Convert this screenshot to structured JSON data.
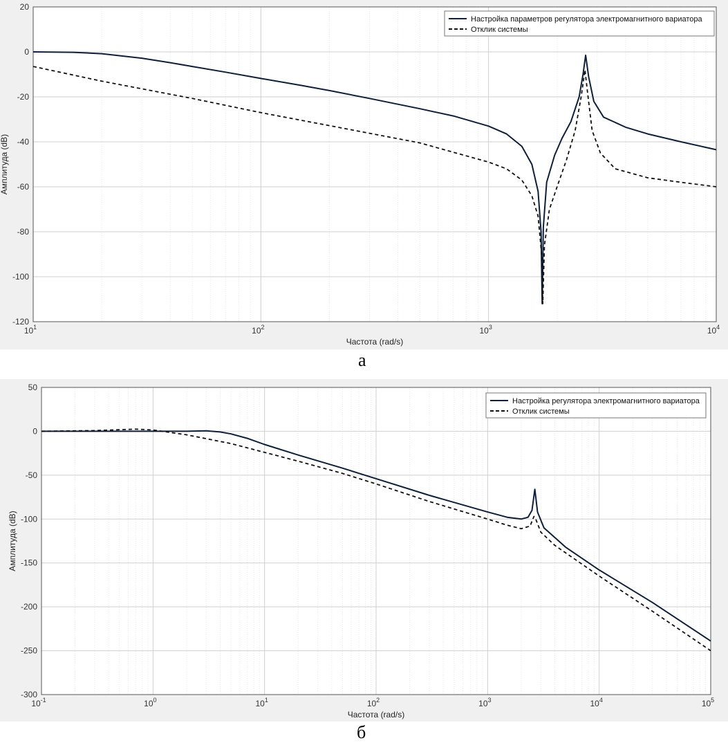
{
  "colors": {
    "solid": "#0d1f3a",
    "dashed": "#111111",
    "figure_bg": "#f0f0f0",
    "axes_bg": "#ffffff",
    "grid_major": "#cfcfcf",
    "grid_minor": "#e6e6e6"
  },
  "chart_data": [
    {
      "type": "line",
      "caption": "а",
      "xlabel": "Частота  (rad/s)",
      "ylabel": "Амплитуда (dB)",
      "xscale": "log",
      "xlim": [
        10,
        10000
      ],
      "ylim": [
        -120,
        20
      ],
      "yticks": [
        20,
        0,
        -20,
        -40,
        -60,
        -80,
        -100,
        -120
      ],
      "xtick_labels": [
        {
          "exp": 1,
          "base": "10",
          "sup": "1"
        },
        {
          "exp": 2,
          "base": "10",
          "sup": "2"
        },
        {
          "exp": 3,
          "base": "10",
          "sup": "3"
        },
        {
          "exp": 4,
          "base": "10",
          "sup": "4"
        }
      ],
      "grid": true,
      "legend_position": "top-right",
      "series": [
        {
          "name": "Настройка параметров регулятора электромагнитного вариатора",
          "style": "solid",
          "points": [
            [
              10,
              0
            ],
            [
              15,
              -0.2
            ],
            [
              20,
              -0.8
            ],
            [
              30,
              -2.8
            ],
            [
              40,
              -4.8
            ],
            [
              50,
              -6.5
            ],
            [
              70,
              -9
            ],
            [
              100,
              -11.8
            ],
            [
              150,
              -14.9
            ],
            [
              200,
              -17.2
            ],
            [
              300,
              -20.7
            ],
            [
              500,
              -25.3
            ],
            [
              700,
              -28.5
            ],
            [
              1000,
              -33
            ],
            [
              1200,
              -36.5
            ],
            [
              1400,
              -42
            ],
            [
              1550,
              -50
            ],
            [
              1650,
              -62
            ],
            [
              1700,
              -80
            ],
            [
              1720,
              -112
            ],
            [
              1740,
              -78
            ],
            [
              1800,
              -58
            ],
            [
              1950,
              -46
            ],
            [
              2100,
              -38.5
            ],
            [
              2300,
              -31
            ],
            [
              2500,
              -20
            ],
            [
              2600,
              -10
            ],
            [
              2670,
              -1.5
            ],
            [
              2750,
              -11
            ],
            [
              2900,
              -22
            ],
            [
              3200,
              -29
            ],
            [
              4000,
              -33.5
            ],
            [
              5000,
              -36.5
            ],
            [
              7000,
              -40
            ],
            [
              10000,
              -43.5
            ]
          ]
        },
        {
          "name": "Отклик системы",
          "style": "dashed",
          "points": [
            [
              10,
              -6.5
            ],
            [
              20,
              -13
            ],
            [
              50,
              -20.7
            ],
            [
              100,
              -27
            ],
            [
              200,
              -32.8
            ],
            [
              500,
              -40.5
            ],
            [
              1000,
              -49
            ],
            [
              1200,
              -52
            ],
            [
              1400,
              -57
            ],
            [
              1550,
              -64
            ],
            [
              1650,
              -73
            ],
            [
              1710,
              -90
            ],
            [
              1730,
              -112
            ],
            [
              1760,
              -86
            ],
            [
              1850,
              -70
            ],
            [
              2000,
              -60
            ],
            [
              2200,
              -48
            ],
            [
              2400,
              -35
            ],
            [
              2550,
              -20
            ],
            [
              2650,
              -8
            ],
            [
              2720,
              -18
            ],
            [
              2850,
              -35
            ],
            [
              3100,
              -45
            ],
            [
              3600,
              -52
            ],
            [
              5000,
              -56
            ],
            [
              7000,
              -58
            ],
            [
              10000,
              -60
            ]
          ]
        }
      ]
    },
    {
      "type": "line",
      "caption": "б",
      "xlabel": "Частота  (rad/s)",
      "ylabel": "Амплитуда (dB)",
      "xscale": "log",
      "xlim": [
        0.1,
        100000
      ],
      "ylim": [
        -300,
        50
      ],
      "yticks": [
        50,
        0,
        -50,
        -100,
        -150,
        -200,
        -250,
        -300
      ],
      "xtick_labels": [
        {
          "exp": -1,
          "base": "10",
          "sup": "-1"
        },
        {
          "exp": 0,
          "base": "10",
          "sup": "0"
        },
        {
          "exp": 1,
          "base": "10",
          "sup": "1"
        },
        {
          "exp": 2,
          "base": "10",
          "sup": "2"
        },
        {
          "exp": 3,
          "base": "10",
          "sup": "3"
        },
        {
          "exp": 4,
          "base": "10",
          "sup": "4"
        },
        {
          "exp": 5,
          "base": "10",
          "sup": "5"
        }
      ],
      "grid": true,
      "legend_position": "top-right",
      "series": [
        {
          "name": "Настройка регулятора электромагнитного вариатора",
          "style": "solid",
          "points": [
            [
              0.1,
              0
            ],
            [
              1,
              0
            ],
            [
              2,
              0
            ],
            [
              3,
              0.5
            ],
            [
              4,
              -0.8
            ],
            [
              5,
              -3
            ],
            [
              7,
              -8
            ],
            [
              10,
              -15
            ],
            [
              20,
              -27
            ],
            [
              50,
              -42
            ],
            [
              100,
              -54
            ],
            [
              300,
              -73
            ],
            [
              1000,
              -92
            ],
            [
              1500,
              -98
            ],
            [
              2000,
              -100
            ],
            [
              2300,
              -98
            ],
            [
              2500,
              -90
            ],
            [
              2650,
              -66
            ],
            [
              2800,
              -92
            ],
            [
              3200,
              -110
            ],
            [
              5000,
              -132
            ],
            [
              10000,
              -158
            ],
            [
              30000,
              -195
            ],
            [
              100000,
              -239
            ]
          ]
        },
        {
          "name": "Отклик системы",
          "style": "dashed",
          "points": [
            [
              0.1,
              0
            ],
            [
              0.3,
              0.8
            ],
            [
              0.7,
              2.5
            ],
            [
              1,
              1.5
            ],
            [
              2,
              -4
            ],
            [
              5,
              -14
            ],
            [
              10,
              -24
            ],
            [
              20,
              -34
            ],
            [
              50,
              -48
            ],
            [
              100,
              -60
            ],
            [
              300,
              -80
            ],
            [
              1000,
              -100
            ],
            [
              1500,
              -107
            ],
            [
              2000,
              -111
            ],
            [
              2400,
              -108
            ],
            [
              2600,
              -97
            ],
            [
              2700,
              -100
            ],
            [
              3000,
              -115
            ],
            [
              4000,
              -130
            ],
            [
              10000,
              -165
            ],
            [
              30000,
              -205
            ],
            [
              100000,
              -250
            ]
          ]
        }
      ]
    }
  ]
}
